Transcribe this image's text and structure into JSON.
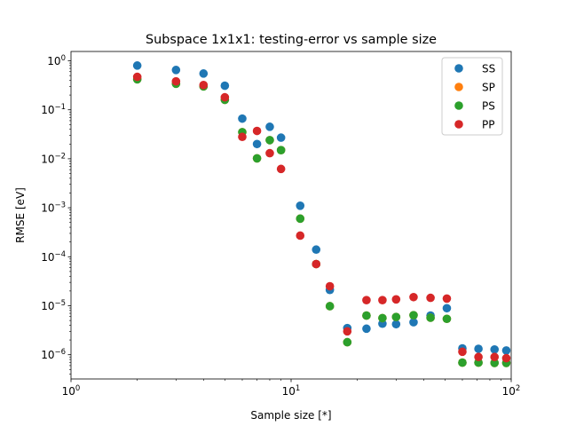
{
  "chart_data": {
    "type": "scatter",
    "title": "Subspace 1x1x1: testing-error vs sample size",
    "xlabel": "Sample size [*]",
    "ylabel": "RMSE [eV]",
    "xscale": "log",
    "yscale": "log",
    "xlim": [
      1,
      100
    ],
    "ylim": [
      3.2e-07,
      1.55
    ],
    "grid": false,
    "legend_position": "top-right",
    "x_ticks": [
      {
        "value": 1,
        "label": "10^0"
      },
      {
        "value": 10,
        "label": "10^1"
      },
      {
        "value": 100,
        "label": "10^2"
      }
    ],
    "y_ticks": [
      {
        "value": 1e-06,
        "label": "10^-6"
      },
      {
        "value": 1e-05,
        "label": "10^-5"
      },
      {
        "value": 0.0001,
        "label": "10^-4"
      },
      {
        "value": 0.001,
        "label": "10^-3"
      },
      {
        "value": 0.01,
        "label": "10^-2"
      },
      {
        "value": 0.1,
        "label": "10^-1"
      },
      {
        "value": 1,
        "label": "10^0"
      }
    ],
    "x": [
      2,
      3,
      4,
      5,
      6,
      7,
      8,
      9,
      11,
      13,
      15,
      18,
      22,
      26,
      30,
      36,
      43,
      51,
      60,
      71,
      84,
      95
    ],
    "series": [
      {
        "name": "SS",
        "color": "#1f77b4",
        "values": [
          0.8,
          0.65,
          0.55,
          0.31,
          0.066,
          0.02,
          0.045,
          0.027,
          0.0011,
          0.00014,
          2.1e-05,
          3.5e-06,
          3.4e-06,
          4.3e-06,
          4.2e-06,
          4.6e-06,
          6.3e-06,
          8.9e-06,
          1.35e-06,
          1.32e-06,
          1.28e-06,
          1.22e-06
        ]
      },
      {
        "name": "SP",
        "color": "#ff7f0e",
        "values": [
          0.42,
          0.34,
          0.3,
          0.16,
          0.035,
          0.0102,
          0.024,
          0.015,
          0.0006,
          7.1e-05,
          9.8e-06,
          1.8e-06,
          6.3e-06,
          5.6e-06,
          5.9e-06,
          6.4e-06,
          5.7e-06,
          5.4e-06,
          6.9e-07,
          6.9e-07,
          6.8e-07,
          6.8e-07
        ]
      },
      {
        "name": "PS",
        "color": "#2ca02c",
        "values": [
          0.42,
          0.34,
          0.3,
          0.16,
          0.035,
          0.0102,
          0.024,
          0.015,
          0.0006,
          7.1e-05,
          9.8e-06,
          1.8e-06,
          6.3e-06,
          5.6e-06,
          5.9e-06,
          6.4e-06,
          5.7e-06,
          5.4e-06,
          6.9e-07,
          6.9e-07,
          6.8e-07,
          6.8e-07
        ]
      },
      {
        "name": "PP",
        "color": "#d62728",
        "values": [
          0.47,
          0.38,
          0.32,
          0.18,
          0.028,
          0.037,
          0.013,
          0.0062,
          0.00027,
          7.1e-05,
          2.5e-05,
          3e-06,
          1.3e-05,
          1.3e-05,
          1.35e-05,
          1.5e-05,
          1.45e-05,
          1.4e-05,
          1.15e-06,
          9e-07,
          9e-07,
          8.5e-07
        ]
      }
    ]
  }
}
